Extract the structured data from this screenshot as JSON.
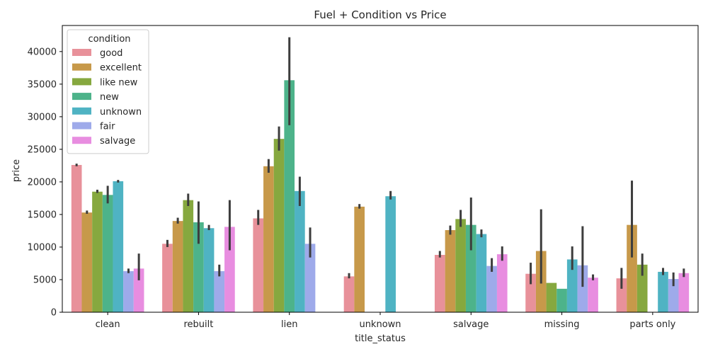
{
  "chart_data": {
    "type": "bar",
    "title": "Fuel + Condition vs Price",
    "xlabel": "title_status",
    "ylabel": "price",
    "ylim": [
      0,
      44000
    ],
    "yticks": [
      0,
      5000,
      10000,
      15000,
      20000,
      25000,
      30000,
      35000,
      40000
    ],
    "categories": [
      "clean",
      "rebuilt",
      "lien",
      "unknown",
      "salvage",
      "missing",
      "parts only"
    ],
    "legend": {
      "title": "condition",
      "placement": "top-left"
    },
    "series": [
      {
        "name": "good",
        "color": "#e8919a",
        "values": [
          22600,
          10500,
          14400,
          5500,
          8800,
          5900,
          5200
        ],
        "ci": [
          [
            22400,
            22800
          ],
          [
            10000,
            11100
          ],
          [
            13400,
            15700
          ],
          [
            5200,
            6000
          ],
          [
            8400,
            9400
          ],
          [
            4300,
            7600
          ],
          [
            3600,
            6800
          ]
        ]
      },
      {
        "name": "excellent",
        "color": "#c7994a",
        "values": [
          15300,
          14000,
          22400,
          16200,
          12600,
          9400,
          13400
        ],
        "ci": [
          [
            15100,
            15600
          ],
          [
            13600,
            14500
          ],
          [
            21400,
            23500
          ],
          [
            15900,
            16600
          ],
          [
            11900,
            13300
          ],
          [
            4400,
            15800
          ],
          [
            8400,
            20200
          ]
        ]
      },
      {
        "name": "like new",
        "color": "#86a83f",
        "values": [
          18500,
          17200,
          26600,
          0,
          14300,
          4500,
          7300
        ],
        "ci": [
          [
            18300,
            18800
          ],
          [
            16300,
            18200
          ],
          [
            24800,
            28500
          ],
          [
            0,
            0
          ],
          [
            13100,
            15700
          ],
          [
            4500,
            4500
          ],
          [
            5600,
            9000
          ]
        ]
      },
      {
        "name": "new",
        "color": "#4db38a",
        "values": [
          18000,
          13800,
          35600,
          0,
          13400,
          3600,
          0
        ],
        "ci": [
          [
            16700,
            19400
          ],
          [
            10500,
            17000
          ],
          [
            28700,
            42200
          ],
          [
            0,
            0
          ],
          [
            9500,
            17600
          ],
          [
            3600,
            3600
          ],
          [
            0,
            0
          ]
        ]
      },
      {
        "name": "unknown",
        "color": "#4fb3c3",
        "values": [
          20100,
          12900,
          18600,
          17800,
          12000,
          8100,
          6200
        ],
        "ci": [
          [
            19900,
            20300
          ],
          [
            12600,
            13400
          ],
          [
            16300,
            20800
          ],
          [
            17300,
            18600
          ],
          [
            11500,
            12700
          ],
          [
            6500,
            10100
          ],
          [
            5700,
            6800
          ]
        ]
      },
      {
        "name": "fair",
        "color": "#9eaaea",
        "values": [
          6300,
          6300,
          10500,
          0,
          7100,
          7200,
          5100
        ],
        "ci": [
          [
            6000,
            6700
          ],
          [
            5500,
            7300
          ],
          [
            8400,
            13000
          ],
          [
            0,
            0
          ],
          [
            6200,
            8300
          ],
          [
            3900,
            13200
          ],
          [
            4000,
            6100
          ]
        ]
      },
      {
        "name": "salvage",
        "color": "#e88de0",
        "values": [
          6700,
          13100,
          0,
          0,
          8900,
          5300,
          6000
        ],
        "ci": [
          [
            4900,
            9000
          ],
          [
            9500,
            17200
          ],
          [
            0,
            0
          ],
          [
            0,
            0
          ],
          [
            7900,
            10100
          ],
          [
            4900,
            5800
          ],
          [
            5400,
            6700
          ]
        ]
      }
    ]
  }
}
